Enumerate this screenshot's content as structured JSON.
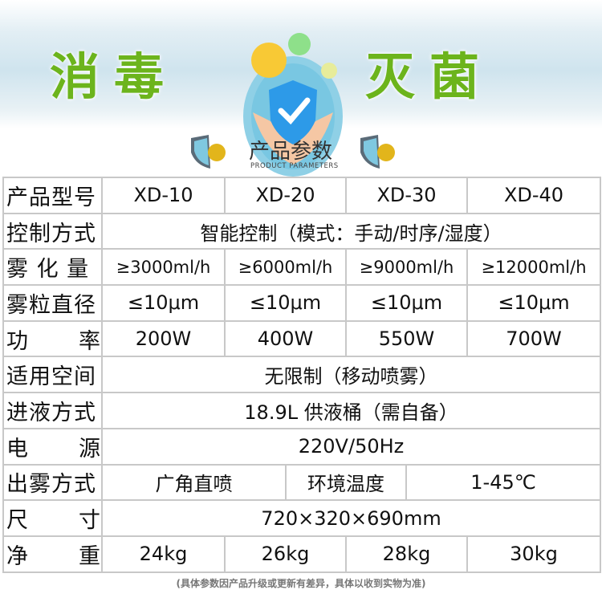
{
  "banner": {
    "title_left": "消毒",
    "title_right": "灭菌"
  },
  "section": {
    "title": "产品参数",
    "subtitle": "PRODUCT PARAMETERS"
  },
  "table": {
    "model": {
      "label": "产品型号",
      "values": [
        "XD-10",
        "XD-20",
        "XD-30",
        "XD-40"
      ]
    },
    "control": {
      "label": "控制方式",
      "value": "智能控制（模式：手动/时序/湿度）"
    },
    "mist_volume": {
      "label": "雾 化 量",
      "values": [
        "≥3000ml/h",
        "≥6000ml/h",
        "≥9000ml/h",
        "≥12000ml/h"
      ]
    },
    "particle": {
      "label": "雾粒直径",
      "values": [
        "≤10μm",
        "≤10μm",
        "≤10μm",
        "≤10μm"
      ]
    },
    "power": {
      "label": "功率",
      "values": [
        "200W",
        "400W",
        "550W",
        "700W"
      ]
    },
    "space": {
      "label": "适用空间",
      "value": "无限制（移动喷雾）"
    },
    "supply": {
      "label": "进液方式",
      "value": "18.9L 供液桶（需自备）"
    },
    "voltage": {
      "label": "电源",
      "value": "220V/50Hz"
    },
    "spray": {
      "label": "出雾方式",
      "value": "广角直喷",
      "temp_label": "环境温度",
      "temp_value": "1-45℃"
    },
    "size": {
      "label": "尺寸",
      "value": "720×320×690mm"
    },
    "weight": {
      "label": "净重",
      "values": [
        "24kg",
        "26kg",
        "28kg",
        "30kg"
      ]
    }
  },
  "footnote": "(具体参数因产品升级或更新有差异，具体以收到实物为准)",
  "colors": {
    "title_green": "#6cb41c",
    "border": "#c8c8c8"
  }
}
